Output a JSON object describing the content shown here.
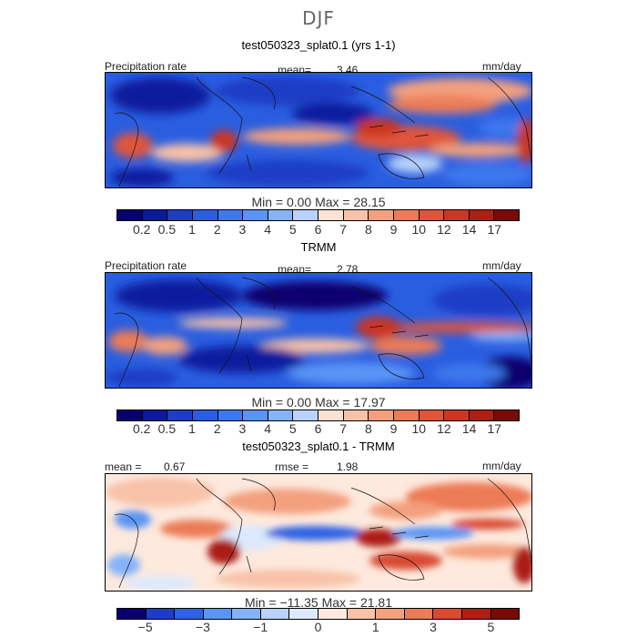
{
  "season": "DJF",
  "panels": [
    {
      "title": "test050323_splat0.1 (yrs 1-1)",
      "left_label": "Precipitation rate",
      "center_label": "mean=",
      "center_value": "3.46",
      "right_label": "mm/day",
      "min_label": "Min =",
      "min_value": "0.00",
      "max_label": "Max =",
      "max_value": "28.15",
      "tick_labels": [
        "0.2",
        "0.5",
        "1",
        "2",
        "3",
        "4",
        "5",
        "6",
        "7",
        "8",
        "9",
        "10",
        "12",
        "14",
        "17"
      ]
    },
    {
      "title": "TRMM",
      "left_label": "Precipitation rate",
      "center_label": "mean=",
      "center_value": "2.78",
      "right_label": "mm/day",
      "min_label": "Min =",
      "min_value": "0.00",
      "max_label": "Max =",
      "max_value": "17.97",
      "tick_labels": [
        "0.2",
        "0.5",
        "1",
        "2",
        "3",
        "4",
        "5",
        "6",
        "7",
        "8",
        "9",
        "10",
        "12",
        "14",
        "17"
      ]
    },
    {
      "title": "test050323_splat0.1 - TRMM",
      "left_label": "mean =",
      "left_value": "0.67",
      "center_label": "rmse =",
      "center_value": "1.98",
      "right_label": "mm/day",
      "min_label": "Min =",
      "min_value": "−11.35",
      "max_label": "Max =",
      "max_value": "21.81",
      "tick_labels": [
        "−5",
        "−3",
        "−1",
        "0",
        "1",
        "3",
        "5"
      ]
    }
  ],
  "colors": {
    "full_scale": [
      "#08006e",
      "#0a1a9e",
      "#1b3ec4",
      "#2a5ee0",
      "#3e78ee",
      "#5a94f5",
      "#85b3f8",
      "#b8d2fb",
      "#fbe2d4",
      "#f8c2a8",
      "#f3a07e",
      "#ec7b57",
      "#e0553a",
      "#cc3622",
      "#ac1f12",
      "#7a0a05"
    ],
    "diff_scale": [
      "#08006e",
      "#1b3ec4",
      "#2e62e4",
      "#5a94f5",
      "#85b3f8",
      "#b8d2fb",
      "#dde9fc",
      "#fde9dd",
      "#f8c2a8",
      "#f3a07e",
      "#ec7b57",
      "#d94a31",
      "#ac1f12",
      "#7a0a05"
    ]
  }
}
